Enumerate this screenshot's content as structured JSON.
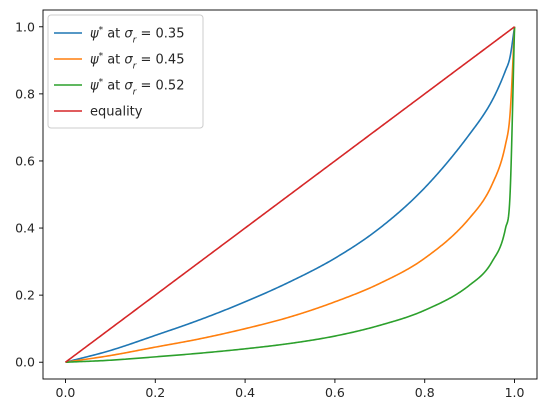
{
  "chart_data": {
    "type": "line",
    "title": "",
    "xlabel": "",
    "ylabel": "",
    "xlim": [
      -0.05,
      1.05
    ],
    "ylim": [
      -0.05,
      1.05
    ],
    "xticks": [
      0.0,
      0.2,
      0.4,
      0.6,
      0.8,
      1.0
    ],
    "yticks": [
      0.0,
      0.2,
      0.4,
      0.6,
      0.8,
      1.0
    ],
    "xtick_labels": [
      "0.0",
      "0.2",
      "0.4",
      "0.6",
      "0.8",
      "1.0"
    ],
    "ytick_labels": [
      "0.0",
      "0.2",
      "0.4",
      "0.6",
      "0.8",
      "1.0"
    ],
    "grid": false,
    "legend_position": "top-left",
    "x": [
      0.0,
      0.1,
      0.2,
      0.3,
      0.4,
      0.5,
      0.6,
      0.7,
      0.8,
      0.9,
      0.95,
      0.98,
      0.99,
      1.0
    ],
    "series": [
      {
        "name": "ψ* at σr = 0.35",
        "color": "#1f77b4",
        "values": [
          0.0,
          0.035,
          0.08,
          0.127,
          0.18,
          0.24,
          0.31,
          0.4,
          0.52,
          0.68,
          0.78,
          0.87,
          0.91,
          1.0
        ]
      },
      {
        "name": "ψ* at σr = 0.45",
        "color": "#ff7f0e",
        "values": [
          0.0,
          0.02,
          0.045,
          0.07,
          0.1,
          0.135,
          0.18,
          0.235,
          0.31,
          0.43,
          0.53,
          0.65,
          0.74,
          1.0
        ]
      },
      {
        "name": "ψ* at σr = 0.52",
        "color": "#2ca02c",
        "values": [
          0.0,
          0.006,
          0.016,
          0.027,
          0.04,
          0.056,
          0.078,
          0.11,
          0.155,
          0.23,
          0.3,
          0.4,
          0.5,
          1.0
        ]
      },
      {
        "name": "equality",
        "color": "#d62728",
        "values": [
          0.0,
          0.1,
          0.2,
          0.3,
          0.4,
          0.5,
          0.6,
          0.7,
          0.8,
          0.9,
          0.95,
          0.98,
          0.99,
          1.0
        ]
      }
    ],
    "legend": {
      "entries": [
        {
          "prefix": "ψ",
          "sup": "*",
          "mid": " at ",
          "sigma": "σ",
          "sub": "r",
          "suffix": " = 0.35"
        },
        {
          "prefix": "ψ",
          "sup": "*",
          "mid": " at ",
          "sigma": "σ",
          "sub": "r",
          "suffix": " = 0.45"
        },
        {
          "prefix": "ψ",
          "sup": "*",
          "mid": " at ",
          "sigma": "σ",
          "sub": "r",
          "suffix": " = 0.52"
        },
        {
          "plain": "equality"
        }
      ]
    }
  }
}
